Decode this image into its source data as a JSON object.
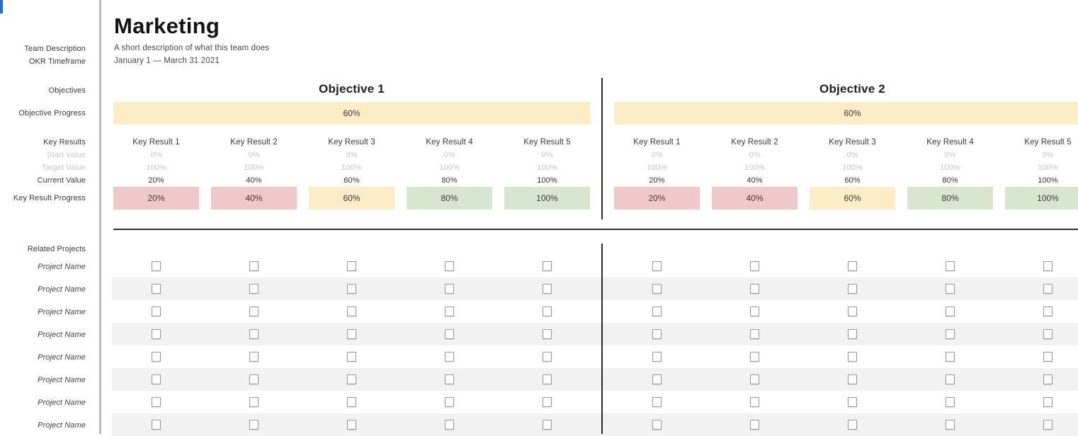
{
  "header": {
    "title": "Marketing",
    "description": "A short description of what this team does",
    "timeframe": "January 1 — March 31 2021"
  },
  "sidebar": {
    "labels": {
      "team_description": "Team Description",
      "okr_timeframe": "OKR Timeframe",
      "objectives": "Objectives",
      "objective_progress": "Objective Progress",
      "key_results": "Key Results",
      "start_value": "Start Value",
      "target_value": "Target Value",
      "current_value": "Current Value",
      "key_result_progress": "Key Result Progress",
      "related_projects": "Related Projects",
      "project_name": "Project Name"
    },
    "project_row_count": 8
  },
  "colors": {
    "objective_bar": "#fcedc7",
    "status_low": "#f0c8ca",
    "status_mid": "#fcedc7",
    "status_high": "#d8e6d0",
    "row_stripe": "#f2f2f2",
    "accent_blue": "#1a6fe8"
  },
  "objectives": [
    {
      "title": "Objective 1",
      "progress": "60%",
      "key_results": [
        {
          "name": "Key Result 1",
          "start": "0%",
          "target": "100%",
          "current": "20%",
          "progress": "20%",
          "color": "#f0c8ca"
        },
        {
          "name": "Key Result 2",
          "start": "0%",
          "target": "100%",
          "current": "40%",
          "progress": "40%",
          "color": "#f0c8ca"
        },
        {
          "name": "Key Result 3",
          "start": "0%",
          "target": "100%",
          "current": "60%",
          "progress": "60%",
          "color": "#fcedc7"
        },
        {
          "name": "Key Result 4",
          "start": "0%",
          "target": "100%",
          "current": "80%",
          "progress": "80%",
          "color": "#d8e6d0"
        },
        {
          "name": "Key Result 5",
          "start": "0%",
          "target": "100%",
          "current": "100%",
          "progress": "100%",
          "color": "#d8e6d0"
        }
      ]
    },
    {
      "title": "Objective 2",
      "progress": "60%",
      "key_results": [
        {
          "name": "Key Result 1",
          "start": "0%",
          "target": "100%",
          "current": "20%",
          "progress": "20%",
          "color": "#f0c8ca"
        },
        {
          "name": "Key Result 2",
          "start": "0%",
          "target": "100%",
          "current": "40%",
          "progress": "40%",
          "color": "#f0c8ca"
        },
        {
          "name": "Key Result 3",
          "start": "0%",
          "target": "100%",
          "current": "60%",
          "progress": "60%",
          "color": "#fcedc7"
        },
        {
          "name": "Key Result 4",
          "start": "0%",
          "target": "100%",
          "current": "80%",
          "progress": "80%",
          "color": "#d8e6d0"
        },
        {
          "name": "Key Result 5",
          "start": "0%",
          "target": "100%",
          "current": "100%",
          "progress": "100%",
          "color": "#d8e6d0"
        }
      ]
    }
  ]
}
